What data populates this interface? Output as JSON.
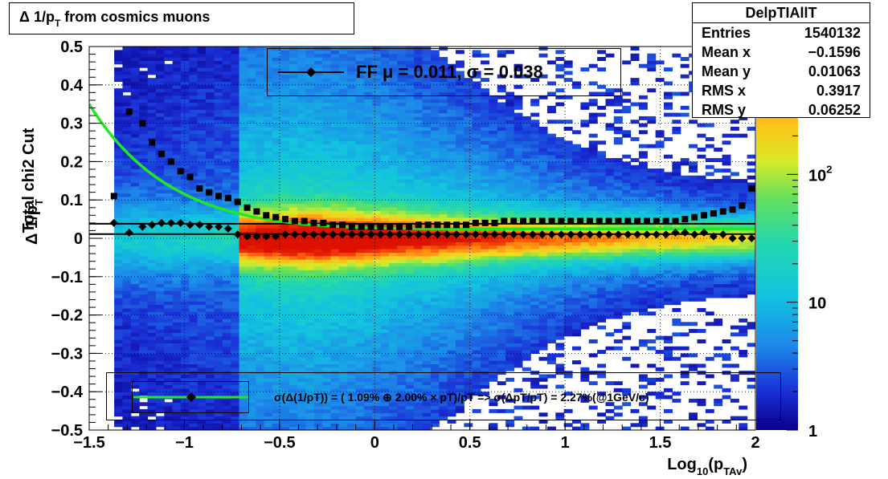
{
  "title": {
    "prefix": "Δ 1/p",
    "sub": "T",
    "suffix": " from cosmics muons"
  },
  "stats": {
    "name": "DelpTIAllT",
    "rows": [
      {
        "label": "Entries",
        "value": "1540132"
      },
      {
        "label": "Mean x",
        "value": "−0.1596"
      },
      {
        "label": "Mean y",
        "value": "0.01063"
      },
      {
        "label": "RMS x",
        "value": "0.3917"
      },
      {
        "label": "RMS y",
        "value": "0.06252"
      }
    ]
  },
  "legend_top": {
    "text": "FF μ =  0.011, σ =   0.038"
  },
  "legend_bottom": {
    "text": "σ(Δ(1/pT)) = ( 1.09% ⊕  2.00% × pT)/pT => σ(ΔpT/pT) =  2.27%(@1GeV/c)"
  },
  "colors": {
    "fit_curve": "#22e822",
    "markers": "#000000"
  },
  "chart_data": {
    "type": "heatmap",
    "xlabel": {
      "main": "Log",
      "sub1": "10",
      "mid": "(p",
      "sub2": "TAv",
      "end": ")"
    },
    "ylabel": {
      "pre": "Total chi2 Cut",
      "main": "Δ 1/p",
      "sub": "T"
    },
    "xlim": [
      -1.5,
      2.0
    ],
    "ylim": [
      -0.5,
      0.5
    ],
    "x_ticks": [
      {
        "v": -1.5,
        "label": "−1.5"
      },
      {
        "v": -1,
        "label": "−1"
      },
      {
        "v": -0.5,
        "label": "−0.5"
      },
      {
        "v": 0,
        "label": "0"
      },
      {
        "v": 0.5,
        "label": "0.5"
      },
      {
        "v": 1,
        "label": "1"
      },
      {
        "v": 1.5,
        "label": "1.5"
      },
      {
        "v": 2,
        "label": "2"
      }
    ],
    "y_ticks": [
      {
        "v": 0.5,
        "label": "0.5"
      },
      {
        "v": 0.4,
        "label": "0.4"
      },
      {
        "v": 0.3,
        "label": "0.3"
      },
      {
        "v": 0.2,
        "label": "0.2"
      },
      {
        "v": 0.1,
        "label": "0.1"
      },
      {
        "v": 0,
        "label": "0"
      },
      {
        "v": -0.1,
        "label": "−0.1"
      },
      {
        "v": -0.2,
        "label": "−0.2"
      },
      {
        "v": -0.3,
        "label": "−0.3"
      },
      {
        "v": -0.4,
        "label": "−0.4"
      },
      {
        "v": -0.5,
        "label": "−0.5"
      }
    ],
    "z_scale": "log",
    "zlim": [
      1,
      1000
    ],
    "z_ticks": [
      {
        "v": 1,
        "label": "1"
      },
      {
        "v": 10,
        "label": "10"
      },
      {
        "v": 100,
        "label": "10",
        "sup": "2"
      }
    ],
    "grid": true,
    "series": [
      {
        "marker": "square",
        "x": [
          -1.37,
          -1.29,
          -1.22,
          -1.17,
          -1.12,
          -1.07,
          -1.02,
          -0.97,
          -0.92,
          -0.87,
          -0.82,
          -0.77,
          -0.72,
          -0.67,
          -0.62,
          -0.57,
          -0.52,
          -0.47,
          -0.42,
          -0.37,
          -0.32,
          -0.27,
          -0.22,
          -0.17,
          -0.12,
          -0.07,
          -0.02,
          0.03,
          0.08,
          0.13,
          0.18,
          0.23,
          0.28,
          0.33,
          0.38,
          0.43,
          0.48,
          0.53,
          0.58,
          0.63,
          0.68,
          0.73,
          0.78,
          0.83,
          0.88,
          0.93,
          0.98,
          1.03,
          1.08,
          1.13,
          1.18,
          1.23,
          1.28,
          1.33,
          1.38,
          1.43,
          1.48,
          1.53,
          1.58,
          1.63,
          1.68,
          1.73,
          1.78,
          1.83,
          1.88,
          1.93,
          1.98
        ],
        "y": [
          0.11,
          0.33,
          0.3,
          0.25,
          0.22,
          0.2,
          0.175,
          0.16,
          0.13,
          0.12,
          0.11,
          0.105,
          0.095,
          0.08,
          0.07,
          0.06,
          0.055,
          0.05,
          0.045,
          0.045,
          0.04,
          0.04,
          0.035,
          0.035,
          0.03,
          0.03,
          0.03,
          0.03,
          0.03,
          0.03,
          0.03,
          0.035,
          0.035,
          0.035,
          0.035,
          0.035,
          0.035,
          0.04,
          0.04,
          0.04,
          0.045,
          0.045,
          0.045,
          0.045,
          0.045,
          0.045,
          0.045,
          0.045,
          0.045,
          0.045,
          0.045,
          0.045,
          0.045,
          0.045,
          0.045,
          0.045,
          0.045,
          0.045,
          0.045,
          0.05,
          0.055,
          0.06,
          0.065,
          0.07,
          0.075,
          0.085,
          0.13
        ]
      },
      {
        "marker": "diamond",
        "x": [
          -1.37,
          -1.29,
          -1.22,
          -1.17,
          -1.12,
          -1.07,
          -1.02,
          -0.97,
          -0.92,
          -0.87,
          -0.82,
          -0.77,
          -0.72,
          -0.67,
          -0.62,
          -0.57,
          -0.52,
          -0.47,
          -0.42,
          -0.37,
          -0.32,
          -0.27,
          -0.22,
          -0.17,
          -0.12,
          -0.07,
          -0.02,
          0.03,
          0.08,
          0.13,
          0.18,
          0.23,
          0.28,
          0.33,
          0.38,
          0.43,
          0.48,
          0.53,
          0.58,
          0.63,
          0.68,
          0.73,
          0.78,
          0.83,
          0.88,
          0.93,
          0.98,
          1.03,
          1.08,
          1.13,
          1.18,
          1.23,
          1.28,
          1.33,
          1.38,
          1.43,
          1.48,
          1.53,
          1.58,
          1.63,
          1.68,
          1.73,
          1.78,
          1.83,
          1.88,
          1.93,
          1.98
        ],
        "y": [
          0.04,
          0.015,
          0.03,
          0.035,
          0.04,
          0.04,
          0.04,
          0.035,
          0.035,
          0.03,
          0.03,
          0.025,
          0.01,
          0.005,
          0.005,
          0.005,
          0.005,
          0.01,
          0.01,
          0.01,
          0.01,
          0.01,
          0.01,
          0.01,
          0.01,
          0.01,
          0.01,
          0.01,
          0.01,
          0.01,
          0.01,
          0.01,
          0.01,
          0.01,
          0.01,
          0.01,
          0.01,
          0.01,
          0.01,
          0.01,
          0.01,
          0.01,
          0.01,
          0.01,
          0.01,
          0.01,
          0.01,
          0.01,
          0.01,
          0.01,
          0.01,
          0.01,
          0.01,
          0.01,
          0.01,
          0.01,
          0.01,
          0.01,
          0.015,
          0.015,
          0.01,
          0.015,
          0.005,
          0.01,
          0.0,
          0.0,
          0.0
        ]
      }
    ],
    "fit_curve": {
      "x_min": -1.5,
      "x_max": 2.0
    },
    "flat_lines": [
      0.038,
      0.011
    ]
  }
}
